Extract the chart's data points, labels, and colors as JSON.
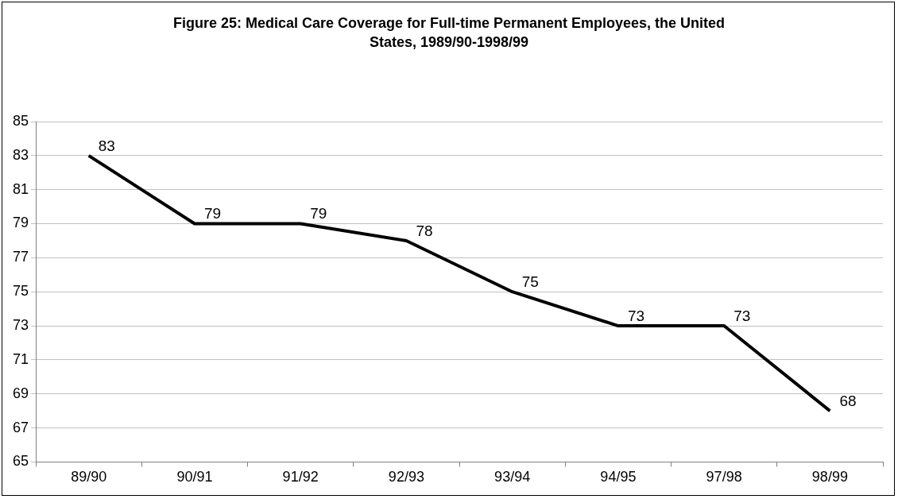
{
  "chart_data": {
    "type": "line",
    "title": "Figure 25: Medical Care Coverage for Full-time Permanent Employees, the United States, 1989/90-1998/99",
    "categories": [
      "89/90",
      "90/91",
      "91/92",
      "92/93",
      "93/94",
      "94/95",
      "97/98",
      "98/99"
    ],
    "values": [
      83,
      79,
      79,
      78,
      75,
      73,
      73,
      68
    ],
    "color": "#000000",
    "ylim": [
      65,
      85
    ],
    "yticks": [
      65,
      67,
      69,
      71,
      73,
      75,
      77,
      79,
      81,
      83,
      85
    ],
    "grid": "y",
    "data_labels": true,
    "marker": "none",
    "line_style": "solid"
  }
}
